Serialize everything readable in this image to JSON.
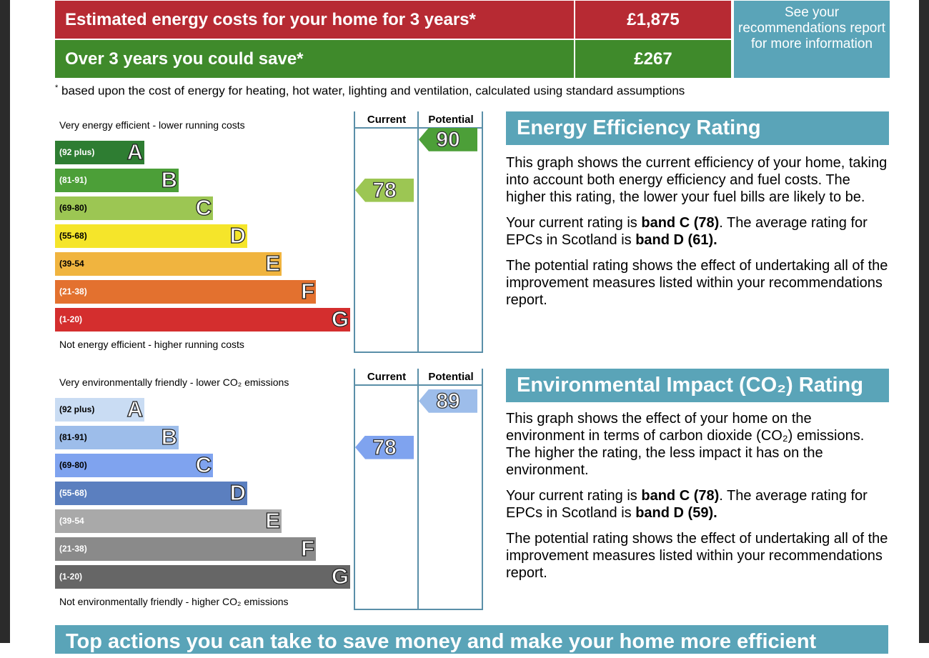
{
  "costs": {
    "estimated_label": "Estimated energy costs for your home for 3 years*",
    "estimated_value": "£1,875",
    "save_label": "Over 3 years you could save*",
    "save_value": "£267",
    "see_link": "See your recommendations report for more information",
    "footnote_mark": "*",
    "footnote": " based upon the cost of energy for heating, hot water, lighting and ventilation, calculated using standard assumptions"
  },
  "energy_chart": {
    "top_caption": "Very energy efficient - lower running costs",
    "bottom_caption": "Not energy efficient - higher running costs",
    "current_header": "Current",
    "potential_header": "Potential",
    "current_value": "78",
    "potential_value": "90",
    "bands": [
      {
        "range": "(92 plus)",
        "letter": "A",
        "color": "#2e7d32"
      },
      {
        "range": "(81-91)",
        "letter": "B",
        "color": "#4c9f38"
      },
      {
        "range": "(69-80)",
        "letter": "C",
        "color": "#9cc653"
      },
      {
        "range": "(55-68)",
        "letter": "D",
        "color": "#f5e52a"
      },
      {
        "range": "(39-54",
        "letter": "E",
        "color": "#f0b43f"
      },
      {
        "range": "(21-38)",
        "letter": "F",
        "color": "#e3712f"
      },
      {
        "range": "(1-20)",
        "letter": "G",
        "color": "#d42e2e"
      }
    ],
    "current_color": "#9cc653",
    "potential_color": "#4c9f38"
  },
  "env_chart": {
    "top_caption": "Very environmentally friendly - lower CO₂ emissions",
    "bottom_caption": "Not environmentally friendly - higher CO₂ emissions",
    "current_header": "Current",
    "potential_header": "Potential",
    "current_value": "78",
    "potential_value": "89",
    "bands": [
      {
        "range": "(92 plus)",
        "letter": "A",
        "color": "#c9dcf3"
      },
      {
        "range": "(81-91)",
        "letter": "B",
        "color": "#9dbdea"
      },
      {
        "range": "(69-80)",
        "letter": "C",
        "color": "#7fa3ef"
      },
      {
        "range": "(55-68)",
        "letter": "D",
        "color": "#5b7fbf"
      },
      {
        "range": "(39-54",
        "letter": "E",
        "color": "#a9a9a9"
      },
      {
        "range": "(21-38)",
        "letter": "F",
        "color": "#8a8a8a"
      },
      {
        "range": "(1-20)",
        "letter": "G",
        "color": "#666666"
      }
    ],
    "current_color": "#7fa3ef",
    "potential_color": "#9dbdea"
  },
  "energy_text": {
    "heading": "Energy Efficiency Rating",
    "p1": "This graph shows the current efficiency of your home, taking into account both energy efficiency and fuel costs. The higher this rating, the lower your fuel bills are likely to be.",
    "p2_a": "Your current rating is ",
    "p2_b": "band C (78)",
    "p2_c": ". The average rating for EPCs in Scotland is ",
    "p2_d": "band D (61).",
    "p3": "The potential rating shows the effect of undertaking all of the improvement measures listed within your recommendations report."
  },
  "env_text": {
    "heading": "Environmental Impact (CO₂) Rating",
    "p1": "This graph shows the effect of your home on the environment in terms of carbon dioxide (CO₂) emissions. The higher the rating, the less impact it has on the environment.",
    "p2_a": "Your current rating is ",
    "p2_b": "band C (78)",
    "p2_c": ". The average rating for EPCs in Scotland is ",
    "p2_d": "band D (59).",
    "p3": "The potential rating shows the effect of undertaking all of the improvement measures listed within your recommendations report."
  },
  "bottom_banner": "Top actions you can take to save money and make your home more efficient"
}
